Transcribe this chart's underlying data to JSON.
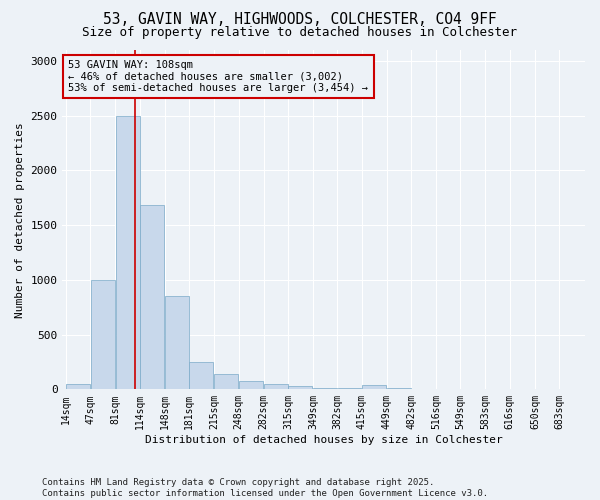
{
  "title_line1": "53, GAVIN WAY, HIGHWOODS, COLCHESTER, CO4 9FF",
  "title_line2": "Size of property relative to detached houses in Colchester",
  "xlabel": "Distribution of detached houses by size in Colchester",
  "ylabel": "Number of detached properties",
  "bar_color": "#c8d8eb",
  "bar_edge_color": "#7aaac8",
  "vline_color": "#cc0000",
  "vline_x": 108,
  "annotation_text": "53 GAVIN WAY: 108sqm\n← 46% of detached houses are smaller (3,002)\n53% of semi-detached houses are larger (3,454) →",
  "annotation_box_color": "#cc0000",
  "background_color": "#edf2f7",
  "grid_color": "#ffffff",
  "bins": [
    14,
    47,
    81,
    114,
    148,
    181,
    215,
    248,
    282,
    315,
    349,
    382,
    415,
    449,
    482,
    516,
    549,
    583,
    616,
    650,
    683
  ],
  "bar_heights": [
    50,
    1000,
    2500,
    1680,
    850,
    250,
    140,
    75,
    50,
    30,
    15,
    10,
    40,
    10,
    5,
    5,
    5,
    5,
    5,
    5
  ],
  "ylim": [
    0,
    3100
  ],
  "yticks": [
    0,
    500,
    1000,
    1500,
    2000,
    2500,
    3000
  ],
  "footnote": "Contains HM Land Registry data © Crown copyright and database right 2025.\nContains public sector information licensed under the Open Government Licence v3.0.",
  "title_fontsize": 10.5,
  "subtitle_fontsize": 9,
  "annotation_fontsize": 7.5,
  "xlabel_fontsize": 8,
  "ylabel_fontsize": 8,
  "tick_fontsize": 7,
  "footnote_fontsize": 6.5
}
